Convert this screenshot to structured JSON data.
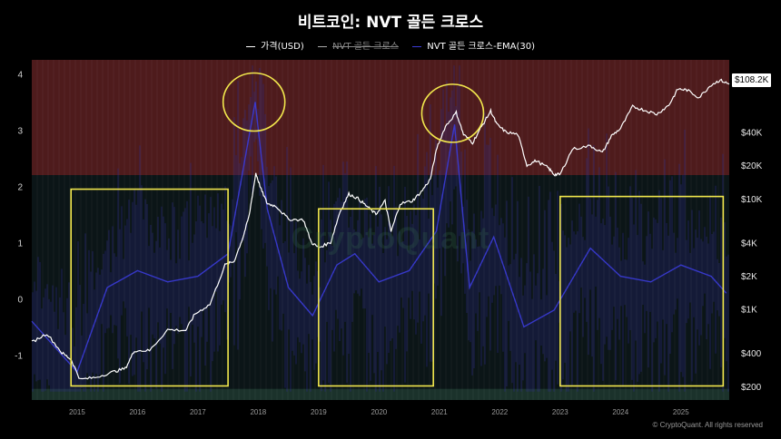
{
  "title": "비트코인: NVT 골든 크로스",
  "legend": [
    {
      "label": "가격(USD)",
      "color": "#ffffff",
      "active": true
    },
    {
      "label": "NVT 골든 크로스",
      "color": "#aaaaaa",
      "active": false
    },
    {
      "label": "NVT 골든 크로스-EMA(30)",
      "color": "#3b3bd8",
      "active": true
    }
  ],
  "price_badge": "$108.2K",
  "watermark": "CryptoQuant",
  "copyright": "© CryptoQuant. All rights reserved",
  "colors": {
    "background": "#000000",
    "overbought_zone": "#5a1f1f",
    "lower_zone": "#1f3a30",
    "highlight": "#f2e84d",
    "nvt_line": "#3b3bd8",
    "price_line": "#ffffff"
  },
  "chart_data": {
    "type": "line",
    "title": "비트코인: NVT 골든 크로스",
    "x_ticks": [
      "2015",
      "2016",
      "2017",
      "2018",
      "2019",
      "2020",
      "2021",
      "2022",
      "2023",
      "2024",
      "2025"
    ],
    "xlim": [
      2014.25,
      2025.8
    ],
    "left_axis": {
      "ticks": [
        "4",
        "3",
        "2",
        "1",
        "0",
        "-1"
      ],
      "ylim": [
        -1.8,
        4.25
      ]
    },
    "right_axis": {
      "scale": "log",
      "ticks": [
        "$40K",
        "$20K",
        "$10K",
        "$4K",
        "$2K",
        "$1K",
        "$400",
        "$200"
      ],
      "tick_values": [
        40000,
        20000,
        10000,
        4000,
        2000,
        1000,
        400,
        200
      ],
      "ylim": [
        150,
        180000
      ]
    },
    "zones": [
      {
        "name": "overbought",
        "from": 2.2,
        "to": 4.25
      },
      {
        "name": "oversold",
        "from": -1.8,
        "to": -1.6
      }
    ],
    "series": [
      {
        "name": "가격(USD)",
        "axis": "right",
        "points": [
          [
            2014.25,
            500
          ],
          [
            2014.5,
            600
          ],
          [
            2014.75,
            400
          ],
          [
            2014.9,
            350
          ],
          [
            2015.05,
            230
          ],
          [
            2015.3,
            240
          ],
          [
            2015.6,
            270
          ],
          [
            2015.8,
            290
          ],
          [
            2015.95,
            420
          ],
          [
            2016.2,
            420
          ],
          [
            2016.5,
            650
          ],
          [
            2016.8,
            640
          ],
          [
            2016.95,
            900
          ],
          [
            2017.2,
            1100
          ],
          [
            2017.45,
            2500
          ],
          [
            2017.6,
            2700
          ],
          [
            2017.75,
            4500
          ],
          [
            2017.85,
            7000
          ],
          [
            2017.96,
            17000
          ],
          [
            2018.05,
            12000
          ],
          [
            2018.15,
            9000
          ],
          [
            2018.3,
            8500
          ],
          [
            2018.5,
            6500
          ],
          [
            2018.75,
            6400
          ],
          [
            2018.88,
            4000
          ],
          [
            2019.0,
            3600
          ],
          [
            2019.2,
            4000
          ],
          [
            2019.35,
            7500
          ],
          [
            2019.5,
            11000
          ],
          [
            2019.65,
            10000
          ],
          [
            2019.8,
            8500
          ],
          [
            2019.95,
            7200
          ],
          [
            2020.1,
            9500
          ],
          [
            2020.2,
            5000
          ],
          [
            2020.35,
            9000
          ],
          [
            2020.55,
            9500
          ],
          [
            2020.7,
            11500
          ],
          [
            2020.85,
            15000
          ],
          [
            2020.96,
            29000
          ],
          [
            2021.1,
            45000
          ],
          [
            2021.28,
            60000
          ],
          [
            2021.4,
            38000
          ],
          [
            2021.55,
            32000
          ],
          [
            2021.7,
            45000
          ],
          [
            2021.85,
            62000
          ],
          [
            2021.95,
            47000
          ],
          [
            2022.1,
            40000
          ],
          [
            2022.3,
            38000
          ],
          [
            2022.45,
            20000
          ],
          [
            2022.6,
            22000
          ],
          [
            2022.8,
            19000
          ],
          [
            2022.9,
            16500
          ],
          [
            2023.0,
            16500
          ],
          [
            2023.2,
            28000
          ],
          [
            2023.5,
            30000
          ],
          [
            2023.7,
            26000
          ],
          [
            2023.85,
            37000
          ],
          [
            2024.0,
            43000
          ],
          [
            2024.2,
            68000
          ],
          [
            2024.4,
            63000
          ],
          [
            2024.6,
            58000
          ],
          [
            2024.8,
            70000
          ],
          [
            2024.95,
            98000
          ],
          [
            2025.1,
            96000
          ],
          [
            2025.3,
            82000
          ],
          [
            2025.5,
            107000
          ],
          [
            2025.65,
            118000
          ],
          [
            2025.8,
            108200
          ]
        ]
      },
      {
        "name": "NVT 골든 크로스-EMA(30)",
        "axis": "left",
        "points": [
          [
            2014.25,
            -0.4
          ],
          [
            2015.0,
            -1.3
          ],
          [
            2015.5,
            0.2
          ],
          [
            2016.0,
            0.5
          ],
          [
            2016.5,
            0.3
          ],
          [
            2017.0,
            0.4
          ],
          [
            2017.5,
            0.8
          ],
          [
            2017.95,
            3.5
          ],
          [
            2018.15,
            1.6
          ],
          [
            2018.5,
            0.2
          ],
          [
            2018.9,
            -0.3
          ],
          [
            2019.3,
            0.6
          ],
          [
            2019.6,
            0.8
          ],
          [
            2020.0,
            0.3
          ],
          [
            2020.5,
            0.5
          ],
          [
            2020.95,
            1.2
          ],
          [
            2021.25,
            3.1
          ],
          [
            2021.5,
            0.2
          ],
          [
            2021.9,
            1.1
          ],
          [
            2022.4,
            -0.5
          ],
          [
            2022.9,
            -0.2
          ],
          [
            2023.5,
            0.9
          ],
          [
            2024.0,
            0.4
          ],
          [
            2024.5,
            0.3
          ],
          [
            2025.0,
            0.6
          ],
          [
            2025.5,
            0.4
          ],
          [
            2025.75,
            0.1
          ]
        ]
      }
    ],
    "annotations": [
      {
        "shape": "circle",
        "label": "",
        "x": 2017.93,
        "y": 3.5,
        "axis": "left"
      },
      {
        "shape": "circle",
        "label": "",
        "x": 2021.22,
        "y": 3.3,
        "axis": "left"
      },
      {
        "shape": "box",
        "label": "",
        "x0": 2014.9,
        "x1": 2017.5,
        "y0": -1.55,
        "y1": 1.95,
        "axis": "left"
      },
      {
        "shape": "box",
        "label": "",
        "x0": 2019.0,
        "x1": 2020.9,
        "y0": -1.55,
        "y1": 1.6,
        "axis": "left"
      },
      {
        "shape": "box",
        "label": "",
        "x0": 2023.0,
        "x1": 2025.7,
        "y0": -1.55,
        "y1": 1.82,
        "axis": "left"
      }
    ]
  }
}
